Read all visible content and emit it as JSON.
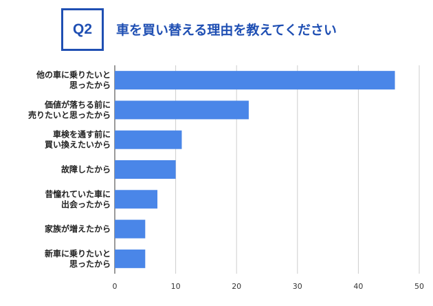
{
  "header": {
    "badge": "Q2",
    "title": "車を買い替える理由を教えてください"
  },
  "chart_data": {
    "type": "bar",
    "orientation": "horizontal",
    "categories": [
      [
        "他の車に乗りたいと",
        "思ったから"
      ],
      [
        "価値が落ちる前に",
        "売りたいと思ったから"
      ],
      [
        "車検を通す前に",
        "買い換えたいから"
      ],
      [
        "故障したから"
      ],
      [
        "昔憧れていた車に",
        "出会ったから"
      ],
      [
        "家族が増えたから"
      ],
      [
        "新車に乗りたいと",
        "思ったから"
      ]
    ],
    "values": [
      46,
      22,
      11,
      10,
      7,
      5,
      5
    ],
    "xlim": [
      0,
      50
    ],
    "xticks": [
      "0",
      "10",
      "20",
      "30",
      "40",
      "50"
    ],
    "grid": true,
    "bar_color": "#4a86e8",
    "grid_color": "#cccccc",
    "title": "",
    "xlabel": "",
    "ylabel": ""
  }
}
